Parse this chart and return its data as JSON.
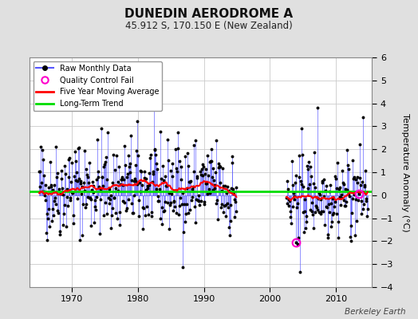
{
  "title": "DUNEDIN AERODROME A",
  "subtitle": "45.912 S, 170.150 E (New Zealand)",
  "ylabel": "Temperature Anomaly (°C)",
  "credit": "Berkeley Earth",
  "xlim": [
    1963.5,
    2015.5
  ],
  "ylim": [
    -4,
    6
  ],
  "yticks": [
    -4,
    -3,
    -2,
    -1,
    0,
    1,
    2,
    3,
    4,
    5,
    6
  ],
  "xticks": [
    1970,
    1980,
    1990,
    2000,
    2010
  ],
  "long_term_trend_value": 0.18,
  "background_color": "#e0e0e0",
  "plot_bg_color": "#ffffff",
  "raw_line_color": "#5555ff",
  "raw_dot_color": "#000000",
  "ma_color": "#ff0000",
  "trend_color": "#00dd00",
  "qc_fail_color": "#ff00cc",
  "seed": 42,
  "start_year": 1965.0,
  "end_year": 2014.92
}
